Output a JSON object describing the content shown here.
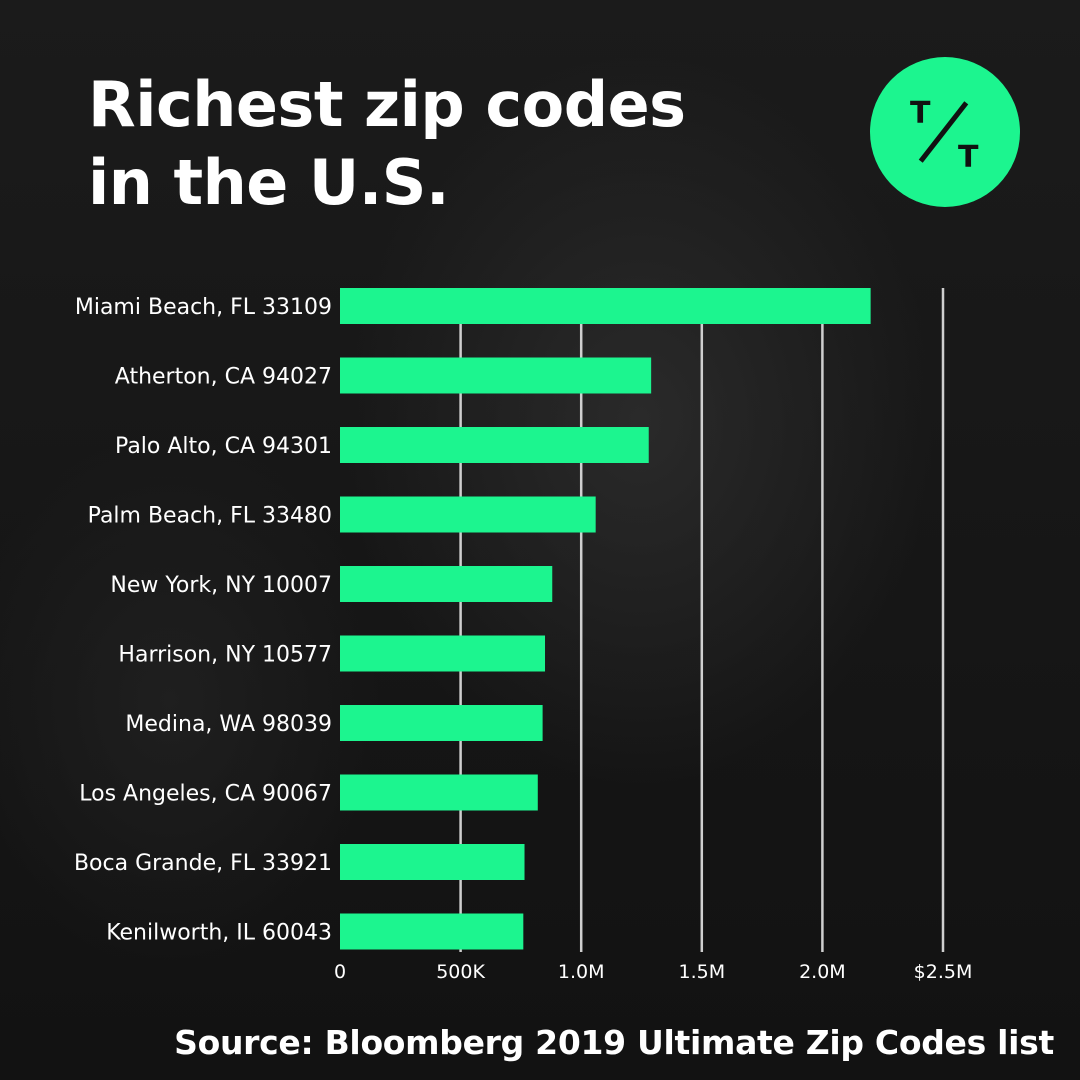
{
  "header": {
    "title_line1": "Richest zip codes",
    "title_line2": "in the U.S."
  },
  "logo": {
    "letter_top": "T",
    "letter_bottom": "T",
    "icon": "tt-logo-icon",
    "color": "#1cf58f"
  },
  "colors": {
    "bar": "#1cf58f",
    "grid": "#cfcfcf",
    "text": "#ffffff"
  },
  "chart_data": {
    "type": "bar",
    "orientation": "horizontal",
    "title": "Richest zip codes in the U.S.",
    "categories": [
      "Miami Beach, FL 33109",
      "Atherton, CA 94027",
      "Palo Alto, CA 94301",
      "Palm Beach, FL 33480",
      "New York, NY 10007",
      "Harrison, NY 10577",
      "Medina, WA 98039",
      "Los Angeles, CA 90067",
      "Boca Grande, FL 33921",
      "Kenilworth, IL 60043"
    ],
    "values": [
      2200000,
      1290000,
      1280000,
      1060000,
      880000,
      850000,
      840000,
      820000,
      765000,
      760000
    ],
    "xlim": [
      0,
      2500000
    ],
    "ticks": [
      0,
      500000,
      1000000,
      1500000,
      2000000,
      2500000
    ],
    "tick_labels": [
      "0",
      "500K",
      "1.0M",
      "1.5M",
      "2.0M",
      "$2.5M"
    ],
    "grid": true,
    "legend": "none"
  },
  "footer": {
    "source": "Source: Bloomberg 2019 Ultimate Zip Codes list"
  }
}
